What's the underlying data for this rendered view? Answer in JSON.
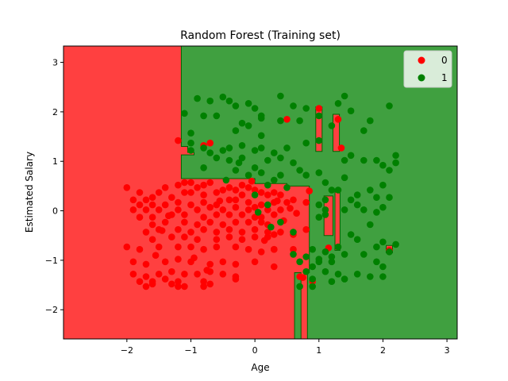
{
  "chart_data": {
    "type": "scatter",
    "title": "Random Forest (Training set)",
    "xlabel": "Age",
    "ylabel": "Estimated Salary",
    "xlim": [
      -2.99,
      3.16
    ],
    "ylim": [
      -2.59,
      3.33
    ],
    "xticks": [
      -2,
      -1,
      0,
      1,
      2,
      3
    ],
    "yticks": [
      -2,
      -1,
      0,
      1,
      2,
      3
    ],
    "grid": false,
    "legend_position": "top-right",
    "colors": {
      "class0": "#ff0000",
      "class1": "#008000",
      "region0": "#ff4040",
      "region1": "#40a040",
      "edge": "#006400"
    },
    "series": [
      {
        "name": "0",
        "color": "#ff0000",
        "points": [
          [
            -2.0,
            0.47
          ],
          [
            -1.8,
            0.37
          ],
          [
            -1.5,
            0.37
          ],
          [
            -1.4,
            0.47
          ],
          [
            -1.2,
            0.52
          ],
          [
            -1.1,
            0.57
          ],
          [
            -1.0,
            0.57
          ],
          [
            -0.9,
            0.47
          ],
          [
            -0.8,
            0.52
          ],
          [
            -0.7,
            0.57
          ],
          [
            -1.9,
            0.22
          ],
          [
            -1.7,
            0.22
          ],
          [
            -1.6,
            0.27
          ],
          [
            -1.3,
            0.27
          ],
          [
            -1.1,
            0.37
          ],
          [
            -1.0,
            0.37
          ],
          [
            -0.8,
            0.32
          ],
          [
            -0.6,
            0.37
          ],
          [
            -0.5,
            0.42
          ],
          [
            -0.4,
            0.47
          ],
          [
            -0.3,
            0.42
          ],
          [
            -0.2,
            0.52
          ],
          [
            -0.1,
            0.47
          ],
          [
            0.0,
            0.42
          ],
          [
            0.1,
            0.37
          ],
          [
            0.2,
            0.32
          ],
          [
            0.3,
            0.37
          ],
          [
            0.4,
            0.32
          ],
          [
            -1.8,
            0.12
          ],
          [
            -1.6,
            0.12
          ],
          [
            -1.4,
            0.12
          ],
          [
            -1.2,
            0.17
          ],
          [
            -1.0,
            0.12
          ],
          [
            -0.8,
            0.17
          ],
          [
            -0.6,
            0.12
          ],
          [
            -0.3,
            0.22
          ],
          [
            -0.1,
            0.17
          ],
          [
            0.1,
            0.12
          ],
          [
            0.3,
            0.17
          ],
          [
            0.5,
            0.17
          ],
          [
            -1.9,
            0.02
          ],
          [
            -1.7,
            0.02
          ],
          [
            -1.5,
            0.02
          ],
          [
            -1.2,
            0.02
          ],
          [
            -0.9,
            0.02
          ],
          [
            -0.7,
            0.07
          ],
          [
            -0.5,
            0.02
          ],
          [
            -0.3,
            0.07
          ],
          [
            -0.1,
            0.02
          ],
          [
            0.0,
            0.07
          ],
          [
            0.2,
            0.02
          ],
          [
            0.4,
            0.02
          ],
          [
            0.6,
            0.22
          ],
          [
            0.8,
            0.17
          ],
          [
            -1.8,
            -0.13
          ],
          [
            -1.6,
            -0.13
          ],
          [
            -1.3,
            -0.08
          ],
          [
            -1.1,
            -0.08
          ],
          [
            -0.8,
            -0.13
          ],
          [
            -0.6,
            -0.08
          ],
          [
            -0.4,
            -0.08
          ],
          [
            -0.2,
            -0.08
          ],
          [
            0.0,
            -0.13
          ],
          [
            0.1,
            -0.13
          ],
          [
            0.3,
            -0.08
          ],
          [
            -1.6,
            -0.28
          ],
          [
            -1.4,
            -0.23
          ],
          [
            -1.1,
            -0.23
          ],
          [
            -0.9,
            -0.28
          ],
          [
            -0.7,
            -0.23
          ],
          [
            -0.5,
            -0.28
          ],
          [
            -0.3,
            -0.23
          ],
          [
            -0.1,
            -0.23
          ],
          [
            0.1,
            -0.23
          ],
          [
            0.2,
            -0.28
          ],
          [
            -1.7,
            -0.43
          ],
          [
            -1.5,
            -0.38
          ],
          [
            -1.2,
            -0.38
          ],
          [
            -1.0,
            -0.43
          ],
          [
            -0.8,
            -0.38
          ],
          [
            -0.6,
            -0.43
          ],
          [
            -0.4,
            -0.38
          ],
          [
            -0.2,
            -0.43
          ],
          [
            0.0,
            -0.38
          ],
          [
            0.2,
            -0.43
          ],
          [
            0.4,
            -0.43
          ],
          [
            0.6,
            -0.48
          ],
          [
            0.8,
            -0.38
          ],
          [
            -1.6,
            -0.58
          ],
          [
            -1.3,
            -0.53
          ],
          [
            -1.1,
            -0.53
          ],
          [
            -0.9,
            -0.58
          ],
          [
            -0.6,
            -0.58
          ],
          [
            -0.4,
            -0.53
          ],
          [
            -0.2,
            -0.58
          ],
          [
            0.0,
            -0.53
          ],
          [
            0.2,
            -0.53
          ],
          [
            0.3,
            -0.48
          ],
          [
            -2.0,
            -0.73
          ],
          [
            -1.8,
            -0.78
          ],
          [
            -1.5,
            -0.73
          ],
          [
            -1.2,
            -0.73
          ],
          [
            -1.0,
            -0.73
          ],
          [
            -0.8,
            -0.78
          ],
          [
            -0.6,
            -0.73
          ],
          [
            -0.3,
            -0.73
          ],
          [
            -0.1,
            -0.78
          ],
          [
            0.1,
            -0.83
          ],
          [
            0.3,
            -0.78
          ],
          [
            0.6,
            -0.78
          ],
          [
            -1.9,
            -1.03
          ],
          [
            -1.7,
            -1.08
          ],
          [
            -1.4,
            -1.03
          ],
          [
            -1.2,
            -0.98
          ],
          [
            -1.0,
            -1.03
          ],
          [
            -0.7,
            -1.08
          ],
          [
            -0.5,
            -1.03
          ],
          [
            -0.3,
            -1.08
          ],
          [
            0.0,
            -1.03
          ],
          [
            0.3,
            -1.13
          ],
          [
            -1.9,
            -1.28
          ],
          [
            -1.7,
            -1.33
          ],
          [
            -1.5,
            -1.28
          ],
          [
            -1.3,
            -1.23
          ],
          [
            -1.1,
            -1.28
          ],
          [
            -0.9,
            -1.28
          ],
          [
            -0.7,
            -1.23
          ],
          [
            -0.5,
            -1.28
          ],
          [
            -0.3,
            -1.33
          ],
          [
            -1.8,
            -1.43
          ],
          [
            -1.6,
            -1.43
          ],
          [
            -1.4,
            -1.38
          ],
          [
            -1.2,
            -1.43
          ],
          [
            -0.8,
            -1.43
          ],
          [
            -0.3,
            -1.38
          ],
          [
            -1.7,
            -1.53
          ],
          [
            -1.6,
            -1.48
          ],
          [
            -1.2,
            -1.53
          ],
          [
            -1.1,
            -1.53
          ],
          [
            -0.8,
            -1.53
          ],
          [
            -0.7,
            -1.48
          ],
          [
            -1.3,
            -1.48
          ],
          [
            0.7,
            -1.33
          ],
          [
            0.9,
            -1.43
          ],
          [
            -1.2,
            1.42
          ],
          [
            -0.8,
            1.32
          ],
          [
            -0.7,
            1.37
          ],
          [
            0.3,
            -0.78
          ],
          [
            -0.4,
            0.22
          ],
          [
            -0.2,
            0.32
          ],
          [
            0.5,
            1.85
          ],
          [
            1.0,
            2.07
          ],
          [
            1.3,
            1.85
          ],
          [
            1.35,
            1.27
          ],
          [
            2.1,
            -0.8
          ],
          [
            1.15,
            -0.75
          ],
          [
            0.75,
            -1.35
          ],
          [
            -1.45,
            -0.4
          ],
          [
            -0.95,
            -0.95
          ],
          [
            0.65,
            -0.05
          ],
          [
            0.85,
            0.4
          ],
          [
            0.55,
            0.05
          ],
          [
            -0.05,
            0.6
          ],
          [
            0.35,
            0.2
          ],
          [
            -0.55,
            0.2
          ],
          [
            -1.35,
            -0.1
          ],
          [
            0.15,
            -0.6
          ],
          [
            -1.55,
            -0.9
          ],
          [
            0.45,
            -0.2
          ],
          [
            -0.75,
            -1.2
          ]
        ]
      },
      {
        "name": "1",
        "color": "#008000",
        "points": [
          [
            -1.1,
            1.97
          ],
          [
            -0.9,
            2.27
          ],
          [
            -0.7,
            2.22
          ],
          [
            -0.5,
            2.3
          ],
          [
            -0.3,
            2.12
          ],
          [
            -0.1,
            2.17
          ],
          [
            0.0,
            2.07
          ],
          [
            0.1,
            1.92
          ],
          [
            0.4,
            2.32
          ],
          [
            0.6,
            2.12
          ],
          [
            -1.0,
            1.57
          ],
          [
            -0.8,
            1.92
          ],
          [
            -0.6,
            1.92
          ],
          [
            -0.4,
            2.22
          ],
          [
            -0.2,
            1.77
          ],
          [
            0.1,
            1.87
          ],
          [
            0.4,
            1.82
          ],
          [
            0.7,
            1.82
          ],
          [
            0.8,
            2.07
          ],
          [
            1.0,
            1.92
          ],
          [
            -1.0,
            1.37
          ],
          [
            -0.8,
            1.27
          ],
          [
            -0.7,
            1.17
          ],
          [
            -0.5,
            1.22
          ],
          [
            -0.3,
            1.62
          ],
          [
            -0.1,
            1.72
          ],
          [
            0.0,
            1.22
          ],
          [
            0.1,
            1.52
          ],
          [
            0.3,
            1.17
          ],
          [
            0.5,
            1.27
          ],
          [
            -0.6,
            1.07
          ],
          [
            -0.4,
            1.02
          ],
          [
            -0.2,
            1.07
          ],
          [
            0.0,
            0.87
          ],
          [
            0.2,
            1.02
          ],
          [
            0.4,
            1.07
          ],
          [
            0.6,
            0.97
          ],
          [
            0.8,
            1.37
          ],
          [
            1.0,
            1.42
          ],
          [
            1.2,
            1.72
          ],
          [
            -0.8,
            0.87
          ],
          [
            -0.3,
            0.82
          ],
          [
            -0.1,
            0.72
          ],
          [
            0.1,
            0.77
          ],
          [
            0.4,
            0.72
          ],
          [
            0.7,
            0.82
          ],
          [
            1.0,
            0.77
          ],
          [
            1.1,
            0.57
          ],
          [
            1.2,
            0.42
          ],
          [
            1.4,
            0.67
          ],
          [
            1.0,
            0.12
          ],
          [
            1.1,
            0.22
          ],
          [
            1.3,
            0.42
          ],
          [
            1.5,
            0.22
          ],
          [
            1.6,
            0.32
          ],
          [
            1.8,
            0.42
          ],
          [
            1.9,
            0.27
          ],
          [
            2.0,
            0.52
          ],
          [
            2.1,
            0.82
          ],
          [
            2.2,
            0.97
          ],
          [
            1.0,
            -0.13
          ],
          [
            1.1,
            -0.08
          ],
          [
            1.4,
            0.02
          ],
          [
            1.7,
            0.02
          ],
          [
            1.9,
            -0.03
          ],
          [
            2.0,
            0.07
          ],
          [
            2.1,
            0.27
          ],
          [
            1.8,
            -0.28
          ],
          [
            1.5,
            -0.48
          ],
          [
            1.6,
            -0.58
          ],
          [
            1.9,
            -0.73
          ],
          [
            2.0,
            -0.63
          ],
          [
            2.2,
            -0.68
          ],
          [
            2.1,
            -0.83
          ],
          [
            1.4,
            -0.88
          ],
          [
            1.7,
            -0.88
          ],
          [
            1.9,
            -1.03
          ],
          [
            2.0,
            -1.13
          ],
          [
            1.2,
            -0.93
          ],
          [
            1.0,
            -1.03
          ],
          [
            0.9,
            -1.13
          ],
          [
            0.8,
            -1.23
          ],
          [
            1.1,
            -1.23
          ],
          [
            1.3,
            -1.28
          ],
          [
            1.6,
            -1.28
          ],
          [
            1.8,
            -1.33
          ],
          [
            1.2,
            -1.43
          ],
          [
            1.4,
            -1.38
          ],
          [
            0.9,
            -1.38
          ],
          [
            2.0,
            -1.33
          ],
          [
            0.7,
            -1.53
          ],
          [
            0.9,
            -1.53
          ],
          [
            0.6,
            -0.88
          ],
          [
            0.9,
            -0.78
          ],
          [
            1.1,
            -0.83
          ],
          [
            1.3,
            -0.73
          ],
          [
            0.8,
            -0.93
          ],
          [
            0.7,
            -1.03
          ],
          [
            1.0,
            -0.98
          ],
          [
            1.2,
            -1.03
          ],
          [
            1.4,
            1.02
          ],
          [
            1.5,
            1.12
          ],
          [
            1.7,
            1.02
          ],
          [
            1.9,
            1.02
          ],
          [
            2.0,
            0.92
          ],
          [
            2.2,
            1.12
          ],
          [
            1.1,
            0.02
          ],
          [
            1.6,
            0.12
          ],
          [
            1.3,
            2.17
          ],
          [
            1.4,
            2.32
          ],
          [
            1.5,
            2.02
          ],
          [
            1.7,
            1.62
          ],
          [
            1.8,
            1.82
          ],
          [
            2.1,
            2.12
          ],
          [
            -1.0,
            1.22
          ],
          [
            -0.4,
            1.27
          ],
          [
            -0.2,
            1.32
          ],
          [
            0.1,
            1.27
          ],
          [
            0.3,
            0.62
          ],
          [
            0.5,
            0.47
          ],
          [
            0.2,
            0.12
          ],
          [
            0.4,
            -0.23
          ],
          [
            0.6,
            -0.43
          ],
          [
            0.8,
            0.72
          ],
          [
            0.2,
            0.52
          ],
          [
            0.0,
            0.32
          ],
          [
            -0.25,
            0.97
          ],
          [
            -0.45,
            0.62
          ],
          [
            0.05,
            -0.03
          ],
          [
            0.25,
            -0.33
          ]
        ]
      }
    ]
  }
}
